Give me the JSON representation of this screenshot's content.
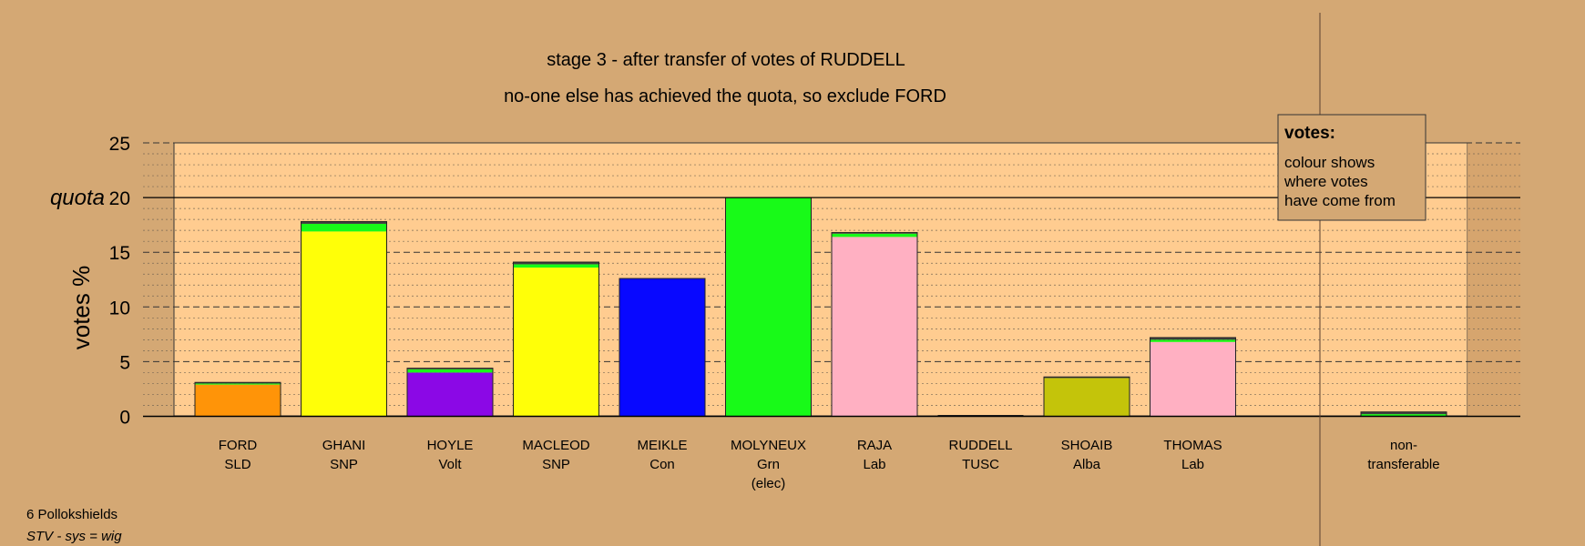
{
  "chart_data": {
    "type": "bar",
    "stacked": true,
    "title": "stage 3 - after transfer of votes of RUDDELL",
    "subtitle": "no-one else has achieved the quota, so exclude FORD",
    "ylabel": "votes %",
    "ylim": [
      0,
      25
    ],
    "yticks": [
      0,
      5,
      10,
      15,
      20,
      25
    ],
    "quota": {
      "label": "quota",
      "value": 20
    },
    "grid": "horizontal dashed",
    "legend": {
      "title": "votes:",
      "lines": [
        "colour shows",
        "where votes",
        "have come from"
      ],
      "position": "top-right"
    },
    "candidates": [
      {
        "name": "FORD",
        "party": "SLD",
        "note": "",
        "segments": [
          {
            "value": 2.9,
            "color": "#ff9408"
          },
          {
            "value": 0.1,
            "color": "#18fa18"
          },
          {
            "value": 0.1,
            "color": "#404040"
          }
        ]
      },
      {
        "name": "GHANI",
        "party": "SNP",
        "note": "",
        "segments": [
          {
            "value": 16.9,
            "color": "#ffff08"
          },
          {
            "value": 0.7,
            "color": "#18fa18"
          },
          {
            "value": 0.2,
            "color": "#404040"
          }
        ]
      },
      {
        "name": "HOYLE",
        "party": "Volt",
        "note": "",
        "segments": [
          {
            "value": 4.0,
            "color": "#8b08e6"
          },
          {
            "value": 0.3,
            "color": "#18fa18"
          },
          {
            "value": 0.1,
            "color": "#404040"
          }
        ]
      },
      {
        "name": "MACLEOD",
        "party": "SNP",
        "note": "",
        "segments": [
          {
            "value": 13.6,
            "color": "#ffff08"
          },
          {
            "value": 0.3,
            "color": "#18fa18"
          },
          {
            "value": 0.2,
            "color": "#404040"
          }
        ]
      },
      {
        "name": "MEIKLE",
        "party": "Con",
        "note": "",
        "segments": [
          {
            "value": 12.6,
            "color": "#0808ff"
          }
        ]
      },
      {
        "name": "MOLYNEUX",
        "party": "Grn",
        "note": "(elec)",
        "segments": [
          {
            "value": 20.0,
            "color": "#18fa18"
          }
        ]
      },
      {
        "name": "RAJA",
        "party": "Lab",
        "note": "",
        "segments": [
          {
            "value": 16.4,
            "color": "#ffb0c2"
          },
          {
            "value": 0.3,
            "color": "#18fa18"
          },
          {
            "value": 0.1,
            "color": "#404040"
          }
        ]
      },
      {
        "name": "RUDDELL",
        "party": "TUSC",
        "note": "",
        "segments": []
      },
      {
        "name": "SHOAIB",
        "party": "Alba",
        "note": "",
        "segments": [
          {
            "value": 3.5,
            "color": "#c4c40a"
          },
          {
            "value": 0.1,
            "color": "#404040"
          }
        ]
      },
      {
        "name": "THOMAS",
        "party": "Lab",
        "note": "",
        "segments": [
          {
            "value": 6.8,
            "color": "#ffb0c2"
          },
          {
            "value": 0.2,
            "color": "#18fa18"
          },
          {
            "value": 0.2,
            "color": "#404040"
          }
        ]
      }
    ],
    "nontransferable": {
      "label_lines": [
        "non-",
        "transferable"
      ],
      "segments": [
        {
          "value": 0.2,
          "color": "#18fa18"
        },
        {
          "value": 0.2,
          "color": "#404040"
        }
      ]
    },
    "colors": {
      "background": "#d4a874",
      "plot_area": "#ffcc90"
    }
  },
  "footer": {
    "line1": "6 Pollokshields",
    "line2": "STV - sys = wig"
  }
}
